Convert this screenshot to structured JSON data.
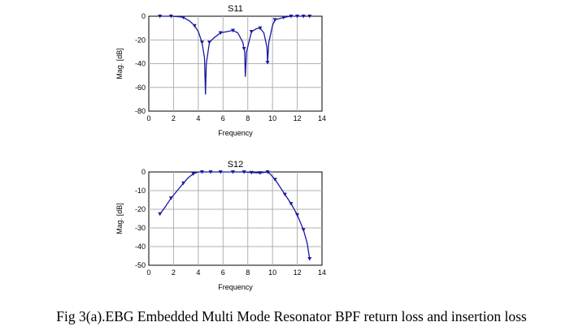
{
  "caption": "Fig 3(a).EBG Embedded Multi Mode Resonator  BPF return loss and insertion loss",
  "colors": {
    "line": "#1a1aa0",
    "grid": "#b0b0b0"
  },
  "chart_data": [
    {
      "type": "line",
      "title": "S11",
      "xlabel": "Frequency",
      "ylabel": "Mag. [dB]",
      "xlim": [
        0,
        14
      ],
      "ylim": [
        -80,
        0
      ],
      "xticks": [
        0,
        2,
        4,
        6,
        8,
        10,
        12,
        14
      ],
      "yticks": [
        0,
        -20,
        -40,
        -60,
        -80
      ],
      "grid": true,
      "x": [
        0.9,
        1.8,
        2.5,
        2.8,
        3.3,
        3.7,
        4.0,
        4.3,
        4.5,
        4.58,
        4.65,
        4.9,
        5.3,
        5.8,
        6.3,
        6.8,
        7.2,
        7.6,
        7.75,
        7.8,
        7.9,
        8.3,
        8.7,
        9.0,
        9.3,
        9.55,
        9.6,
        9.7,
        10.0,
        10.2,
        10.9,
        11.5,
        12.0,
        12.5,
        13.0
      ],
      "y": [
        0,
        0,
        -0.5,
        -1,
        -4,
        -8,
        -13,
        -22,
        -35,
        -66,
        -40,
        -22,
        -18,
        -14,
        -13,
        -12,
        -14,
        -22,
        -30,
        -51,
        -30,
        -13,
        -10.5,
        -10,
        -14,
        -26,
        -39,
        -22,
        -8,
        -3,
        -1,
        0,
        0,
        0,
        0
      ],
      "markers_x": [
        0.9,
        1.8,
        2.8,
        3.7,
        4.3,
        4.9,
        5.8,
        6.8,
        7.7,
        8.3,
        9.0,
        9.6,
        10.2,
        10.9,
        11.5,
        12.0,
        12.5,
        13.0
      ]
    },
    {
      "type": "line",
      "title": "S12",
      "xlabel": "Frequency",
      "ylabel": "Mag. [dB]",
      "xlim": [
        0,
        14
      ],
      "ylim": [
        -50,
        0
      ],
      "xticks": [
        0,
        2,
        4,
        6,
        8,
        10,
        12,
        14
      ],
      "yticks": [
        0,
        -10,
        -20,
        -30,
        -40,
        -50
      ],
      "grid": true,
      "x": [
        0.9,
        1.3,
        1.8,
        2.3,
        2.8,
        3.2,
        3.6,
        4.0,
        4.3,
        5.0,
        5.8,
        6.8,
        7.7,
        8.3,
        9.0,
        9.6,
        9.8,
        10.2,
        10.6,
        11.0,
        11.5,
        12.0,
        12.5,
        12.8,
        13.0
      ],
      "y": [
        -22.5,
        -19,
        -14,
        -10,
        -6,
        -3,
        -1,
        0,
        0,
        0,
        0,
        0,
        0,
        -0.3,
        -0.5,
        0,
        -1,
        -4,
        -8,
        -12,
        -17,
        -23,
        -31,
        -38,
        -46.5
      ],
      "markers_x": [
        0.9,
        1.8,
        2.8,
        3.6,
        4.3,
        5.0,
        5.8,
        6.8,
        7.7,
        8.3,
        9.0,
        9.6,
        10.2,
        11.0,
        11.5,
        12.0,
        12.5,
        13.0
      ]
    }
  ]
}
